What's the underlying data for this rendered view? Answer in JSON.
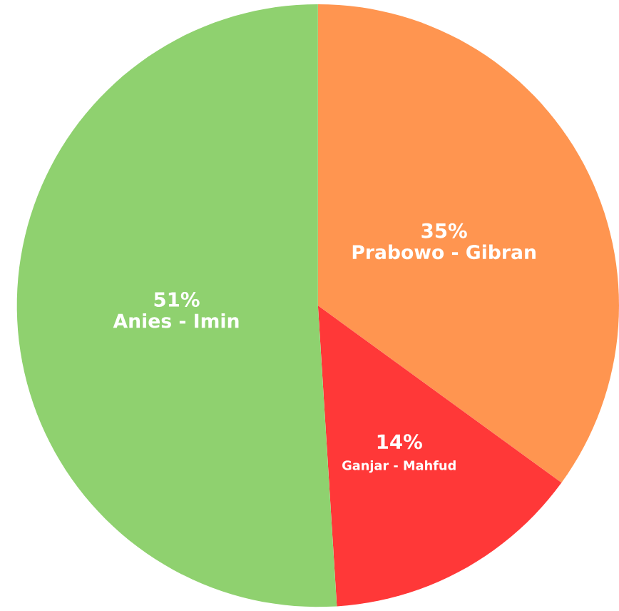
{
  "chart_data": {
    "type": "pie",
    "categories": [
      "Prabowo - Gibran",
      "Ganjar - Mahfud",
      "Anies - Imin"
    ],
    "values": [
      35,
      14,
      51
    ],
    "value_labels": [
      "35%",
      "14%",
      "51%"
    ],
    "colors": [
      "#ff9550",
      "#ff3838",
      "#8fd16f"
    ]
  }
}
